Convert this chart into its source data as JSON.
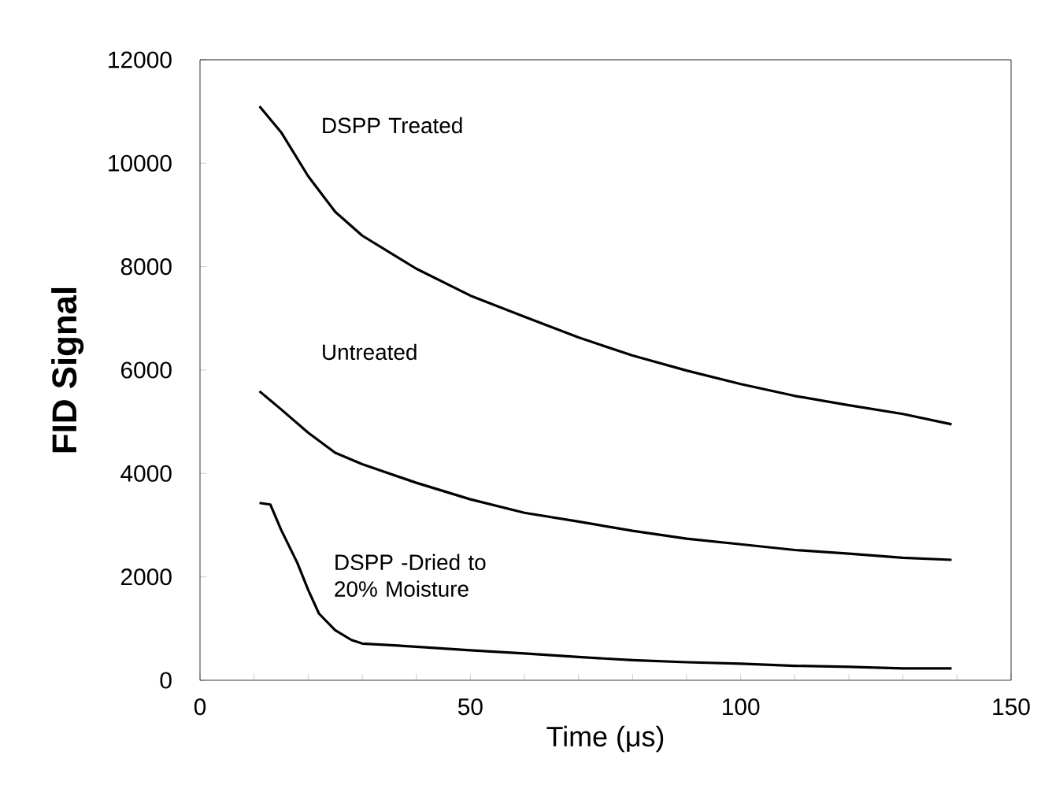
{
  "chart_data": {
    "type": "line",
    "xlabel": "Time (μs)",
    "ylabel": "**FID Signal**",
    "xlim": [
      0,
      150
    ],
    "ylim": [
      0,
      12000
    ],
    "xticks": [
      0,
      {
        "value": 10,
        "label": null
      },
      {
        "value": 20,
        "label": null
      },
      {
        "value": 30,
        "label": null
      },
      {
        "value": 40,
        "label": null
      },
      50,
      {
        "value": 60,
        "label": null
      },
      {
        "value": 70,
        "label": null
      },
      {
        "value": 80,
        "label": null
      },
      {
        "value": 90,
        "label": null
      },
      100,
      {
        "value": 110,
        "label": null
      },
      {
        "value": 120,
        "label": null
      },
      {
        "value": 130,
        "label": null
      },
      {
        "value": 140,
        "label": null
      },
      150
    ],
    "yticks": [
      0,
      2000,
      4000,
      6000,
      8000,
      10000,
      12000
    ],
    "grid": false,
    "legend": false,
    "marker": "none",
    "line_style": "solid",
    "series": [
      {
        "name": "DSPP Treated",
        "color": "#000000",
        "x": [
          11,
          15,
          20,
          25,
          30,
          40,
          50,
          60,
          70,
          80,
          90,
          100,
          110,
          120,
          130,
          139
        ],
        "values": [
          11100,
          10600,
          9750,
          9060,
          8600,
          7960,
          7440,
          7030,
          6630,
          6280,
          5990,
          5730,
          5500,
          5320,
          5150,
          4950
        ]
      },
      {
        "name": "Untreated",
        "color": "#000000",
        "x": [
          11,
          15,
          20,
          25,
          30,
          40,
          50,
          60,
          70,
          80,
          90,
          100,
          110,
          120,
          130,
          139
        ],
        "values": [
          5590,
          5240,
          4790,
          4400,
          4180,
          3820,
          3500,
          3240,
          3070,
          2890,
          2740,
          2630,
          2520,
          2450,
          2370,
          2330
        ]
      },
      {
        "name": "DSPP -Dried to 20% Moisture",
        "color": "#000000",
        "x": [
          11,
          13,
          15,
          18,
          20,
          22,
          25,
          28,
          30,
          40,
          50,
          60,
          70,
          80,
          90,
          100,
          110,
          120,
          130,
          139
        ],
        "values": [
          3430,
          3400,
          2910,
          2270,
          1750,
          1290,
          970,
          780,
          710,
          650,
          580,
          520,
          450,
          390,
          350,
          320,
          280,
          260,
          230,
          230
        ]
      }
    ]
  }
}
